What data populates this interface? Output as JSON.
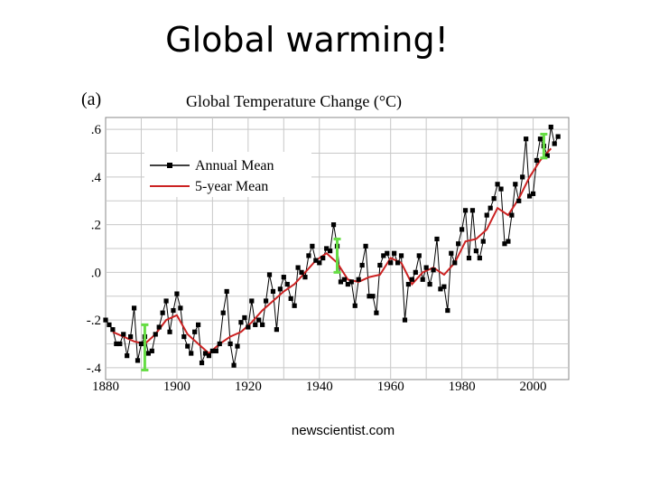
{
  "slide": {
    "title": "Global warming!",
    "source": "newscientist.com"
  },
  "chart_data": {
    "type": "line",
    "panel_label": "(a)",
    "title": "Global Temperature Change (°C)",
    "xlim": [
      1880,
      2010
    ],
    "ylim": [
      -0.45,
      0.65
    ],
    "x_ticks": [
      1880,
      1900,
      1920,
      1940,
      1960,
      1980,
      2000
    ],
    "x_tick_labels": [
      "1880",
      "1900",
      "1920",
      "1940",
      "1960",
      "1980",
      "2000"
    ],
    "y_ticks": [
      0.6,
      0.4,
      0.2,
      0.0,
      -0.2,
      -0.4
    ],
    "y_tick_labels": [
      ".6",
      ".4",
      ".2",
      ".0",
      "-.2",
      "-.4"
    ],
    "grid": true,
    "legend_position": "top-left",
    "series": [
      {
        "name": "Annual Mean",
        "color": "#000000",
        "marker": "square",
        "x": [
          1880,
          1881,
          1882,
          1883,
          1884,
          1885,
          1886,
          1887,
          1888,
          1889,
          1890,
          1891,
          1892,
          1893,
          1894,
          1895,
          1896,
          1897,
          1898,
          1899,
          1900,
          1901,
          1902,
          1903,
          1904,
          1905,
          1906,
          1907,
          1908,
          1909,
          1910,
          1911,
          1912,
          1913,
          1914,
          1915,
          1916,
          1917,
          1918,
          1919,
          1920,
          1921,
          1922,
          1923,
          1924,
          1925,
          1926,
          1927,
          1928,
          1929,
          1930,
          1931,
          1932,
          1933,
          1934,
          1935,
          1936,
          1937,
          1938,
          1939,
          1940,
          1941,
          1942,
          1943,
          1944,
          1945,
          1946,
          1947,
          1948,
          1949,
          1950,
          1951,
          1952,
          1953,
          1954,
          1955,
          1956,
          1957,
          1958,
          1959,
          1960,
          1961,
          1962,
          1963,
          1964,
          1965,
          1966,
          1967,
          1968,
          1969,
          1970,
          1971,
          1972,
          1973,
          1974,
          1975,
          1976,
          1977,
          1978,
          1979,
          1980,
          1981,
          1982,
          1983,
          1984,
          1985,
          1986,
          1987,
          1988,
          1989,
          1990,
          1991,
          1992,
          1993,
          1994,
          1995,
          1996,
          1997,
          1998,
          1999,
          2000,
          2001,
          2002,
          2003,
          2004,
          2005,
          2006,
          2007
        ],
        "values": [
          -0.2,
          -0.22,
          -0.24,
          -0.3,
          -0.3,
          -0.26,
          -0.35,
          -0.27,
          -0.15,
          -0.37,
          -0.3,
          -0.27,
          -0.34,
          -0.33,
          -0.26,
          -0.23,
          -0.17,
          -0.12,
          -0.25,
          -0.16,
          -0.09,
          -0.15,
          -0.27,
          -0.31,
          -0.34,
          -0.25,
          -0.22,
          -0.38,
          -0.34,
          -0.35,
          -0.33,
          -0.33,
          -0.3,
          -0.17,
          -0.08,
          -0.3,
          -0.39,
          -0.31,
          -0.21,
          -0.19,
          -0.23,
          -0.12,
          -0.22,
          -0.2,
          -0.22,
          -0.12,
          -0.01,
          -0.08,
          -0.24,
          -0.07,
          -0.02,
          -0.05,
          -0.11,
          -0.14,
          0.02,
          0.0,
          -0.02,
          0.07,
          0.11,
          0.05,
          0.04,
          0.06,
          0.1,
          0.09,
          0.2,
          0.11,
          -0.04,
          -0.03,
          -0.05,
          -0.04,
          -0.14,
          -0.03,
          0.03,
          0.11,
          -0.1,
          -0.1,
          -0.17,
          0.03,
          0.07,
          0.08,
          0.04,
          0.08,
          0.04,
          0.07,
          -0.2,
          -0.05,
          -0.03,
          0.0,
          0.07,
          -0.03,
          0.02,
          -0.05,
          0.01,
          0.14,
          -0.07,
          -0.06,
          -0.16,
          0.08,
          0.04,
          0.12,
          0.18,
          0.26,
          0.06,
          0.26,
          0.09,
          0.06,
          0.13,
          0.24,
          0.27,
          0.31,
          0.37,
          0.35,
          0.12,
          0.13,
          0.24,
          0.37,
          0.3,
          0.4,
          0.56,
          0.32,
          0.33,
          0.47,
          0.56,
          0.53,
          0.49,
          0.61,
          0.54,
          0.57
        ]
      },
      {
        "name": "5-year Mean",
        "color": "#cc2222",
        "x": [
          1882,
          1885,
          1888,
          1891,
          1894,
          1897,
          1900,
          1903,
          1906,
          1909,
          1912,
          1915,
          1918,
          1921,
          1924,
          1927,
          1930,
          1933,
          1936,
          1939,
          1942,
          1945,
          1948,
          1951,
          1954,
          1957,
          1960,
          1963,
          1966,
          1969,
          1972,
          1975,
          1978,
          1981,
          1984,
          1987,
          1990,
          1993,
          1996,
          1999,
          2002,
          2005
        ],
        "values": [
          -0.25,
          -0.27,
          -0.29,
          -0.3,
          -0.26,
          -0.2,
          -0.18,
          -0.26,
          -0.3,
          -0.34,
          -0.3,
          -0.27,
          -0.25,
          -0.21,
          -0.16,
          -0.12,
          -0.08,
          -0.05,
          0.0,
          0.05,
          0.08,
          0.04,
          -0.03,
          -0.04,
          -0.02,
          -0.01,
          0.06,
          0.04,
          -0.05,
          0.0,
          0.02,
          -0.01,
          0.04,
          0.13,
          0.14,
          0.18,
          0.27,
          0.24,
          0.31,
          0.4,
          0.47,
          0.52
        ]
      }
    ],
    "error_bars": [
      {
        "x": 1891,
        "low": -0.41,
        "high": -0.22,
        "color": "#66dd44"
      },
      {
        "x": 1945,
        "low": 0.0,
        "high": 0.14,
        "color": "#66dd44"
      },
      {
        "x": 2003,
        "low": 0.48,
        "high": 0.58,
        "color": "#66dd44"
      }
    ]
  }
}
